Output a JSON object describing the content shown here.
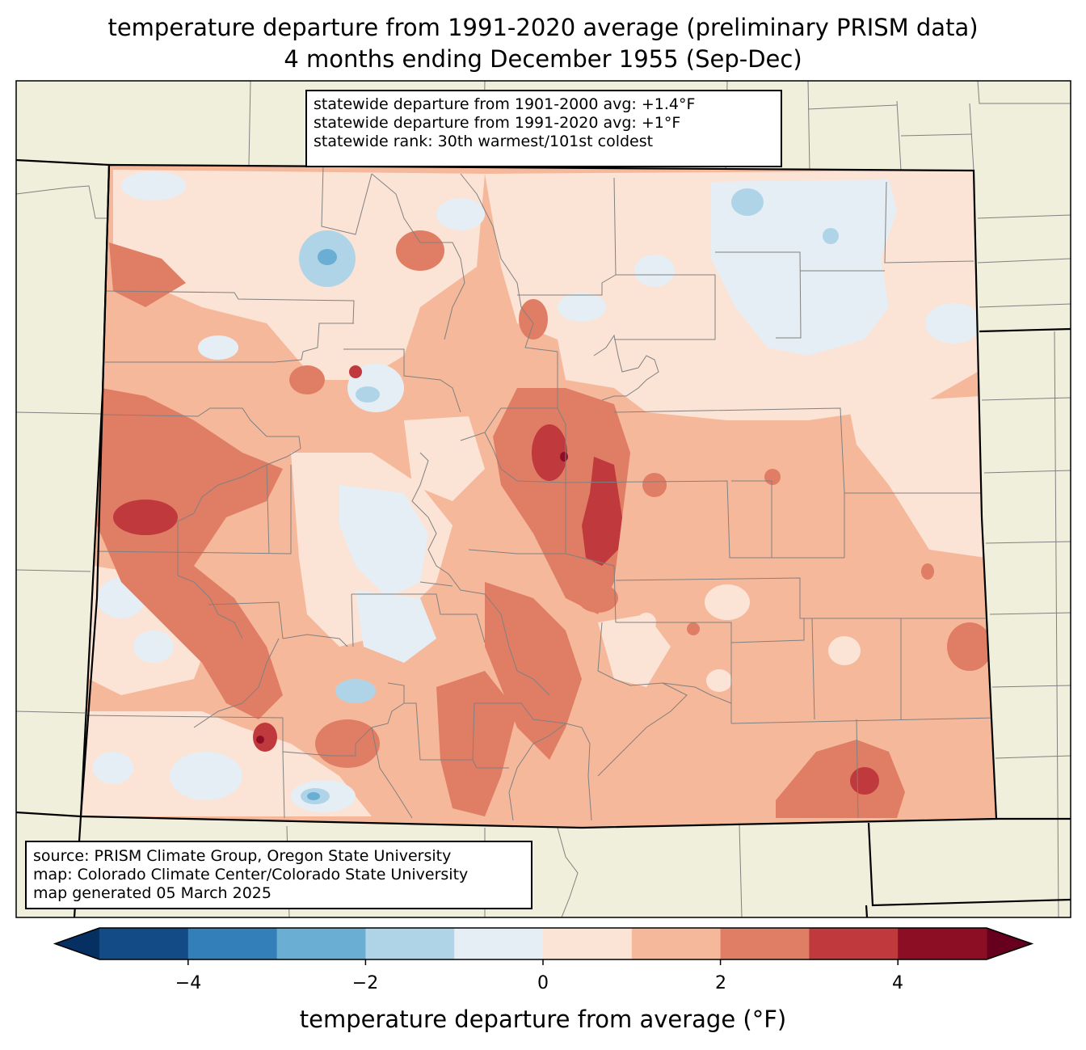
{
  "title": {
    "line1": "temperature departure from 1991-2020 average (preliminary PRISM data)",
    "line2": "4 months ending December 1955 (Sep-Dec)"
  },
  "stats": {
    "line1": "statewide departure from 1901-2000 avg: +1.4°F",
    "line2": "statewide departure from 1991-2020 avg: +1°F",
    "line3": "statewide rank: 30th warmest/101st coldest"
  },
  "source": {
    "line1": "source: PRISM Climate Group, Oregon State University",
    "line2": "map: Colorado Climate Center/Colorado State University",
    "line3": "map generated 05 March 2025"
  },
  "colorbar": {
    "label": "temperature departure from average (°F)",
    "ticks": [
      "−4",
      "−2",
      "0",
      "2",
      "4"
    ],
    "bins": [
      {
        "from": -5,
        "to": -4,
        "color": "#134b87"
      },
      {
        "from": -4,
        "to": -3,
        "color": "#327fba"
      },
      {
        "from": -3,
        "to": -2,
        "color": "#6aaed3"
      },
      {
        "from": -2,
        "to": -1,
        "color": "#b0d4e7"
      },
      {
        "from": -1,
        "to": 0,
        "color": "#e5eef4"
      },
      {
        "from": 0,
        "to": 1,
        "color": "#fbe4d6"
      },
      {
        "from": 1,
        "to": 2,
        "color": "#f6b89b"
      },
      {
        "from": 2,
        "to": 3,
        "color": "#e07d65"
      },
      {
        "from": 3,
        "to": 4,
        "color": "#c0393c"
      },
      {
        "from": 4,
        "to": 5,
        "color": "#8b0e25"
      }
    ],
    "under_color": "#053061",
    "over_color": "#67001f"
  },
  "colors": {
    "land_background": "#f0efdc",
    "county_line": "#808080",
    "border_line": "#000000"
  }
}
